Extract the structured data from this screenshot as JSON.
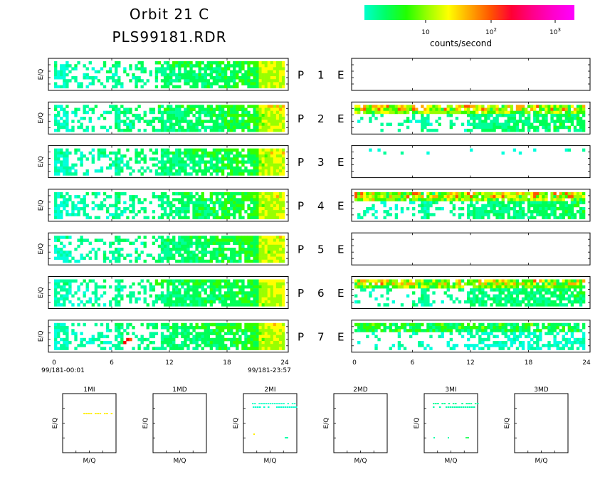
{
  "header": {
    "title": "Orbit 21 C",
    "filename": "PLS99181.RDR"
  },
  "colorbar": {
    "label": "counts/second",
    "ticks": [
      {
        "text": "10"
      },
      {
        "text": "10",
        "sup": "2"
      },
      {
        "text": "10",
        "sup": "3"
      }
    ],
    "colors": [
      "#00ffcc",
      "#00ff66",
      "#22ff00",
      "#99ff00",
      "#ffff00",
      "#ffaa00",
      "#ff5500",
      "#ff0033",
      "#ff0088",
      "#ff00cc",
      "#ff00ff"
    ]
  },
  "chart_data": {
    "type": "heatmap",
    "ylabel": "E/Q",
    "xticks": [
      "0",
      "6",
      "12",
      "18",
      "24"
    ],
    "x_start_label": "99/181-00:01",
    "x_end_label": "99/181-23:57",
    "xlim": [
      0,
      24
    ],
    "panels": [
      {
        "row": "P",
        "index": "1",
        "col_label": "E",
        "left_activity": "moderate",
        "right_activity": "none"
      },
      {
        "row": "P",
        "index": "2",
        "col_label": "E",
        "left_activity": "moderate",
        "right_activity": "high"
      },
      {
        "row": "P",
        "index": "3",
        "col_label": "E",
        "left_activity": "moderate",
        "right_activity": "sparse"
      },
      {
        "row": "P",
        "index": "4",
        "col_label": "E",
        "left_activity": "moderate",
        "right_activity": "high"
      },
      {
        "row": "P",
        "index": "5",
        "col_label": "E",
        "left_activity": "moderate",
        "right_activity": "none"
      },
      {
        "row": "P",
        "index": "6",
        "col_label": "E",
        "left_activity": "moderate",
        "right_activity": "high"
      },
      {
        "row": "P",
        "index": "7",
        "col_label": "E",
        "left_activity": "moderate",
        "right_activity": "moderate"
      }
    ],
    "mq_panels": [
      {
        "title": "1MI",
        "xlabel": "M/Q",
        "ylabel": "E/Q"
      },
      {
        "title": "1MD",
        "xlabel": "M/Q",
        "ylabel": "E/Q"
      },
      {
        "title": "2MI",
        "xlabel": "M/Q",
        "ylabel": "E/Q"
      },
      {
        "title": "2MD",
        "xlabel": "M/Q",
        "ylabel": "E/Q"
      },
      {
        "title": "3MI",
        "xlabel": "M/Q",
        "ylabel": "E/Q"
      },
      {
        "title": "3MD",
        "xlabel": "M/Q",
        "ylabel": "E/Q"
      }
    ]
  }
}
